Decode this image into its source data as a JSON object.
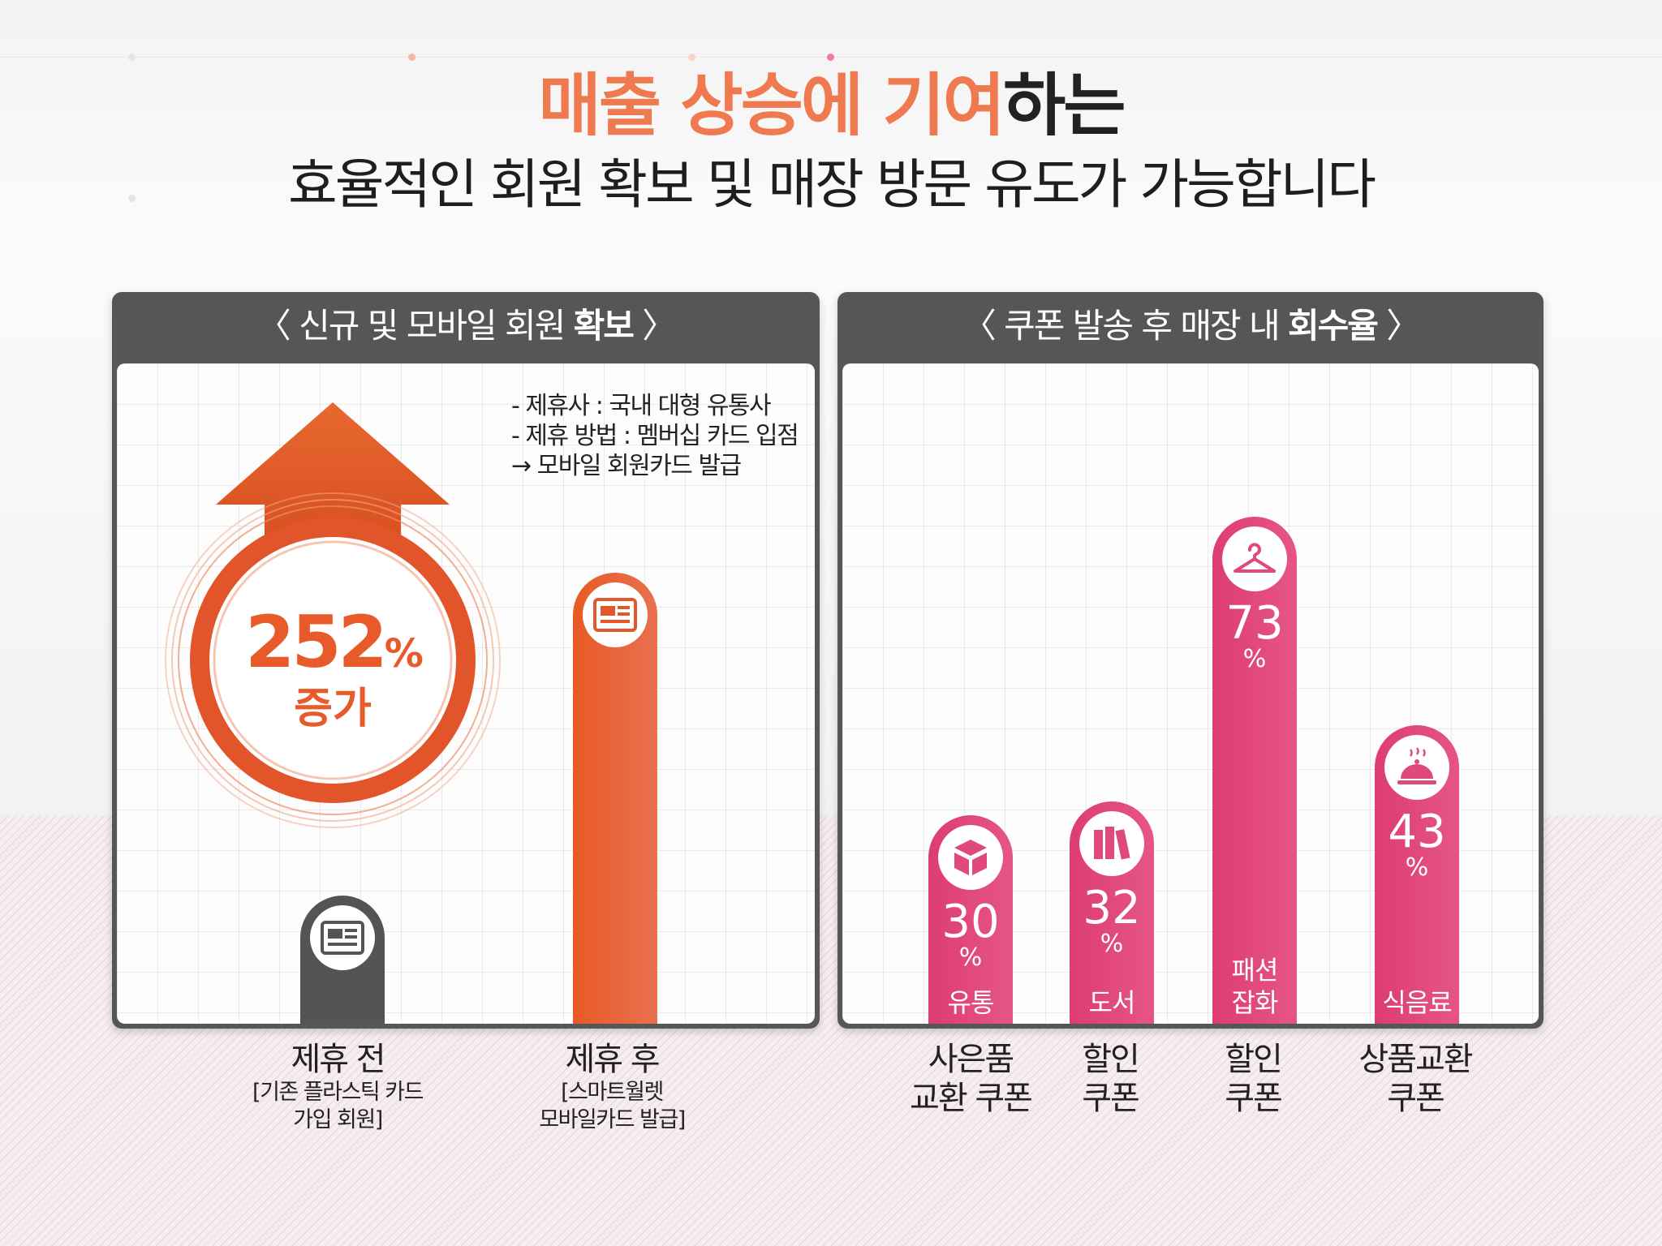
{
  "title": {
    "line1_highlight": "매출 상승에 기여",
    "line1_rest": "하는",
    "line2": "효율적인 회원 확보 및 매장 방문 유도가 가능합니다"
  },
  "colors": {
    "accent_orange": "#e8602e",
    "bar_gray": "#555455",
    "bar_pink": "#e04a7a",
    "panel_header": "#575657"
  },
  "left_panel": {
    "title_prefix": "〈 신규 및 모바일 회원 ",
    "title_bold": "확보",
    "title_suffix": " 〉",
    "notes": [
      "- 제휴사 : 국내 대형 유통사",
      "- 제휴 방법 : 멤버십 카드 입점",
      "→ 모바일 회원카드 발급"
    ],
    "increase_value": "252",
    "increase_unit": "%",
    "increase_label": "증가",
    "icons": [
      "card-icon",
      "card-icon"
    ]
  },
  "right_panel": {
    "title_prefix": "〈 쿠폰 발송 후 매장 내 ",
    "title_bold": "회수율",
    "title_suffix": " 〉",
    "icons": [
      "box-icon",
      "books-icon",
      "hanger-icon",
      "cloche-icon"
    ]
  },
  "chart_data": [
    {
      "type": "bar",
      "title": "〈 신규 및 모바일 회원 확보 〉",
      "categories": [
        "제휴 전",
        "제휴 후"
      ],
      "category_subtitles": [
        [
          "[기존 플라스틱 카드",
          "가입 회원]"
        ],
        [
          "[스마트월렛",
          "모바일카드 발급]"
        ]
      ],
      "values": [
        100,
        352
      ],
      "annotation": "252% 증가"
    },
    {
      "type": "bar",
      "title": "〈 쿠폰 발송 후 매장 내 회수율 〉",
      "categories": [
        [
          "사은품",
          "교환 쿠폰"
        ],
        [
          "할인",
          "쿠폰"
        ],
        [
          "할인",
          "쿠폰"
        ],
        [
          "상품교환",
          "쿠폰"
        ]
      ],
      "bar_labels": [
        [
          "유통"
        ],
        [
          "도서"
        ],
        [
          "패션",
          "잡화"
        ],
        [
          "식음료"
        ]
      ],
      "values": [
        30,
        32,
        73,
        43
      ],
      "value_labels": [
        "30",
        "32",
        "73",
        "43"
      ],
      "unit": "%",
      "ylim": [
        0,
        100
      ]
    }
  ]
}
